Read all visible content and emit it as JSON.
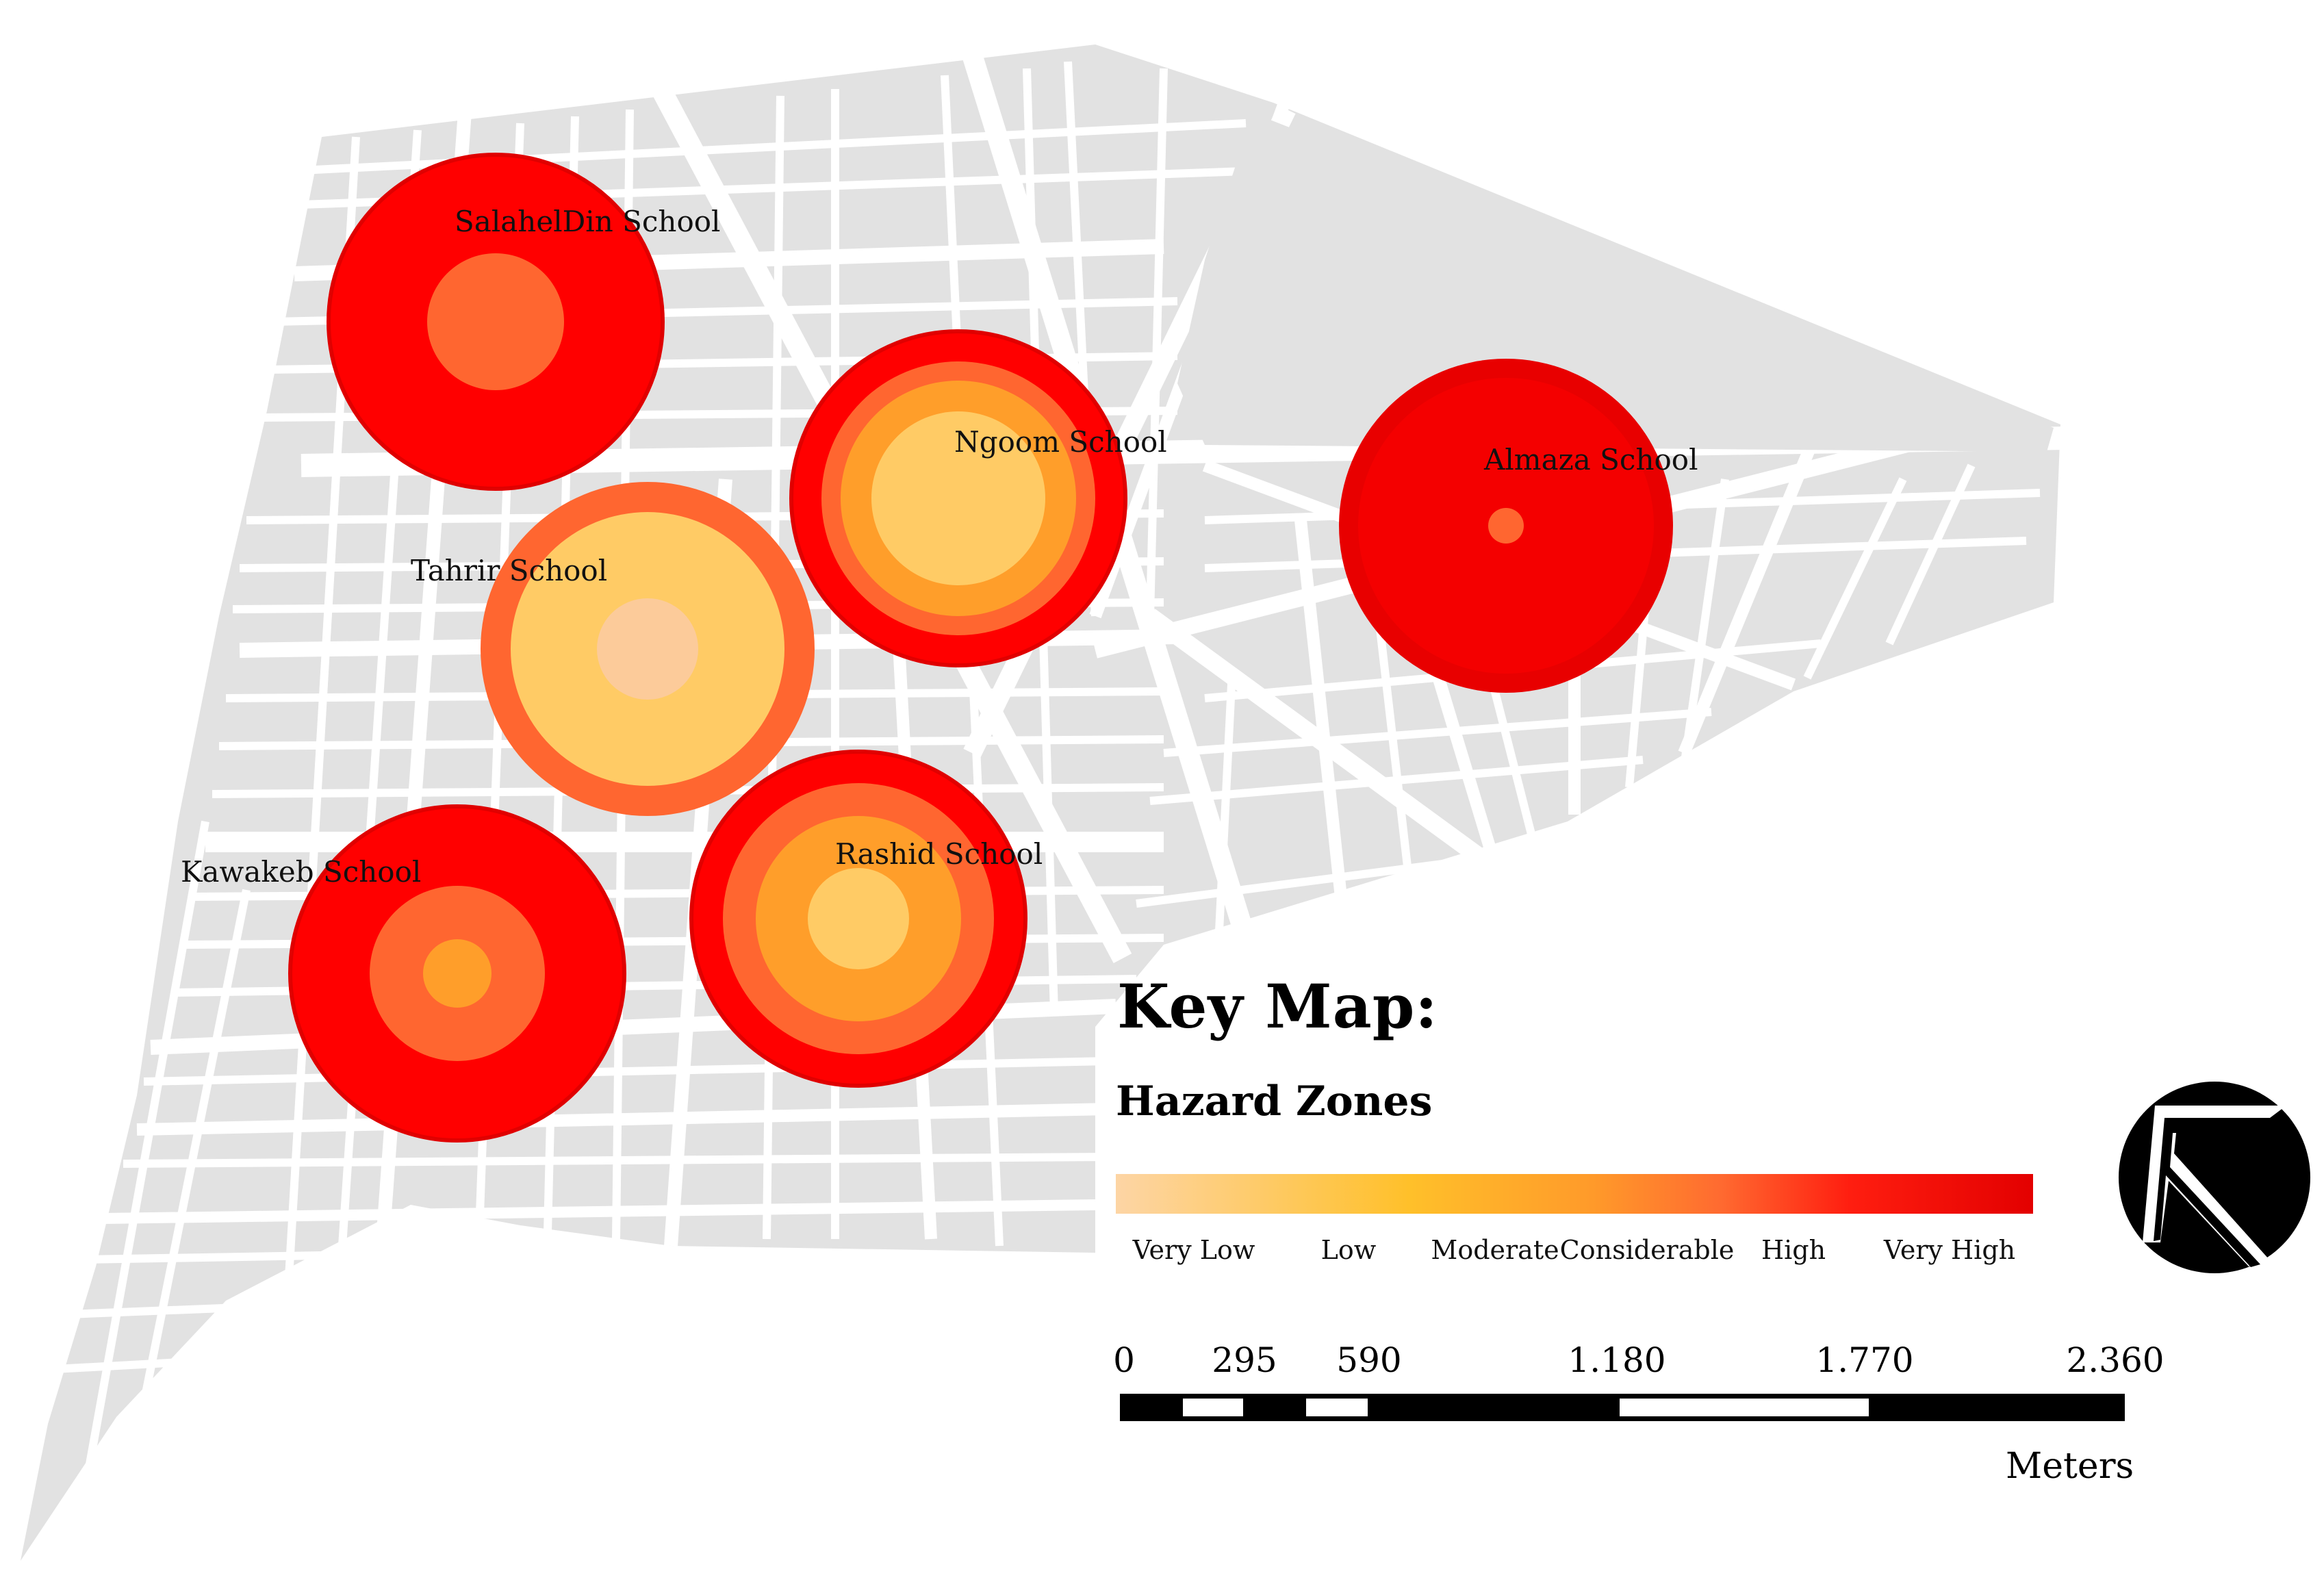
{
  "map": {
    "schools": [
      {
        "name": "SalahelDin School",
        "zones": [
          "very-high",
          "considerable"
        ]
      },
      {
        "name": "Ngoom School",
        "zones": [
          "very-high",
          "considerable",
          "moderate",
          "low"
        ]
      },
      {
        "name": "Almaza School",
        "zones": [
          "very-high",
          "high",
          "considerable"
        ]
      },
      {
        "name": "Tahrir School",
        "zones": [
          "considerable",
          "low",
          "very-low"
        ]
      },
      {
        "name": "Kawakeb School",
        "zones": [
          "very-high",
          "considerable",
          "moderate"
        ]
      },
      {
        "name": "Rashid School",
        "zones": [
          "very-high",
          "considerable",
          "moderate",
          "low"
        ]
      }
    ]
  },
  "legend": {
    "title": "Key Map:",
    "subtitle": "Hazard Zones",
    "levels": [
      {
        "label": "Very Low",
        "color": "#FDD5A5"
      },
      {
        "label": "Low",
        "color": "#FFCB65"
      },
      {
        "label": "Moderate",
        "color": "#FF9E2A"
      },
      {
        "label": "Considerable",
        "color": "#FF6A30"
      },
      {
        "label": "High",
        "color": "#FF1E10"
      },
      {
        "label": "Very High",
        "color": "#E30000"
      }
    ]
  },
  "scale": {
    "ticks": [
      "0",
      "295",
      "590",
      "1.180",
      "1.770",
      "2.360"
    ],
    "unit": "Meters"
  },
  "colors": {
    "very_high": "#FF0000",
    "high": "#F00000",
    "considerable": "#FF6630",
    "moderate": "#FF9E2A",
    "low": "#FFCB65",
    "very_low": "#FDD5A5",
    "block": "#E2E2E2"
  },
  "north_arrow": {
    "icon": "north-arrow-icon"
  }
}
